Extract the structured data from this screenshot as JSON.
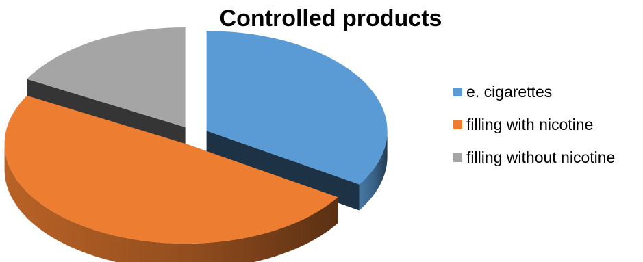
{
  "chart_data": {
    "type": "pie",
    "title": "Controlled products",
    "labels": [
      "e. cigarettes",
      "filling with nicotine",
      "filling without nicotine"
    ],
    "values": [
      34,
      49,
      17
    ],
    "colors": [
      "#5B9BD5",
      "#ED7D31",
      "#A5A5A5"
    ],
    "exploded": true,
    "three_d": true,
    "legend_position": "right"
  }
}
